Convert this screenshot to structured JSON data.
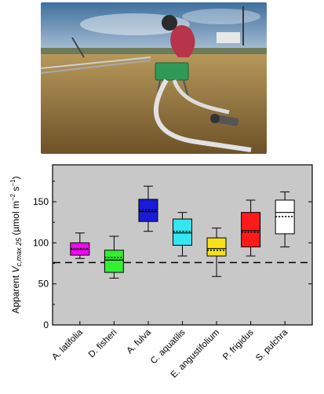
{
  "photo": {
    "description": "field-photo",
    "colors": {
      "sky": "#7fa3c6",
      "grass": "#8a6a3a",
      "instrument": "#2f9a57"
    }
  },
  "chart_data": {
    "type": "box",
    "ylabel_prefix": "Apparent ",
    "ylabel_v": "V",
    "ylabel_sub": "c,max 25",
    "ylabel_units": " (µmol m",
    "ylabel_units_sup1": "−2",
    "ylabel_units_mid": " s",
    "ylabel_units_sup2": "−1",
    "ylabel_units_end": ")",
    "ylim": [
      0,
      195
    ],
    "yticks": [
      0,
      50,
      100,
      150
    ],
    "reference_line": 76,
    "background": "#c8c8c8",
    "categories": [
      "A. latifolia",
      "D. fisheri",
      "A. fulva",
      "C. aquatilis",
      "E. angustifolium",
      "P. frigidus",
      "S. pulchra"
    ],
    "colors": [
      "#ff00ff",
      "#33ee33",
      "#1a1ad9",
      "#33e6f0",
      "#f5e11a",
      "#ff1a1a",
      "#ffffff"
    ],
    "boxes": [
      {
        "whisker_low": 81,
        "q1": 85,
        "median": 92,
        "mean": 93,
        "q3": 100,
        "whisker_high": 112
      },
      {
        "whisker_low": 57,
        "q1": 64,
        "median": 79,
        "mean": 82,
        "q3": 91,
        "whisker_high": 108
      },
      {
        "whisker_low": 114,
        "q1": 126,
        "median": 138,
        "mean": 140,
        "q3": 153,
        "whisker_high": 169
      },
      {
        "whisker_low": 84,
        "q1": 97,
        "median": 112,
        "mean": 114,
        "q3": 129,
        "whisker_high": 137
      },
      {
        "whisker_low": 59,
        "q1": 84,
        "median": 93,
        "mean": 91,
        "q3": 106,
        "whisker_high": 118
      },
      {
        "whisker_low": 84,
        "q1": 95,
        "median": 115,
        "mean": 113,
        "q3": 137,
        "whisker_high": 152
      },
      {
        "whisker_low": 95,
        "q1": 111,
        "median": 137,
        "mean": 132,
        "q3": 152,
        "whisker_high": 162
      }
    ]
  }
}
